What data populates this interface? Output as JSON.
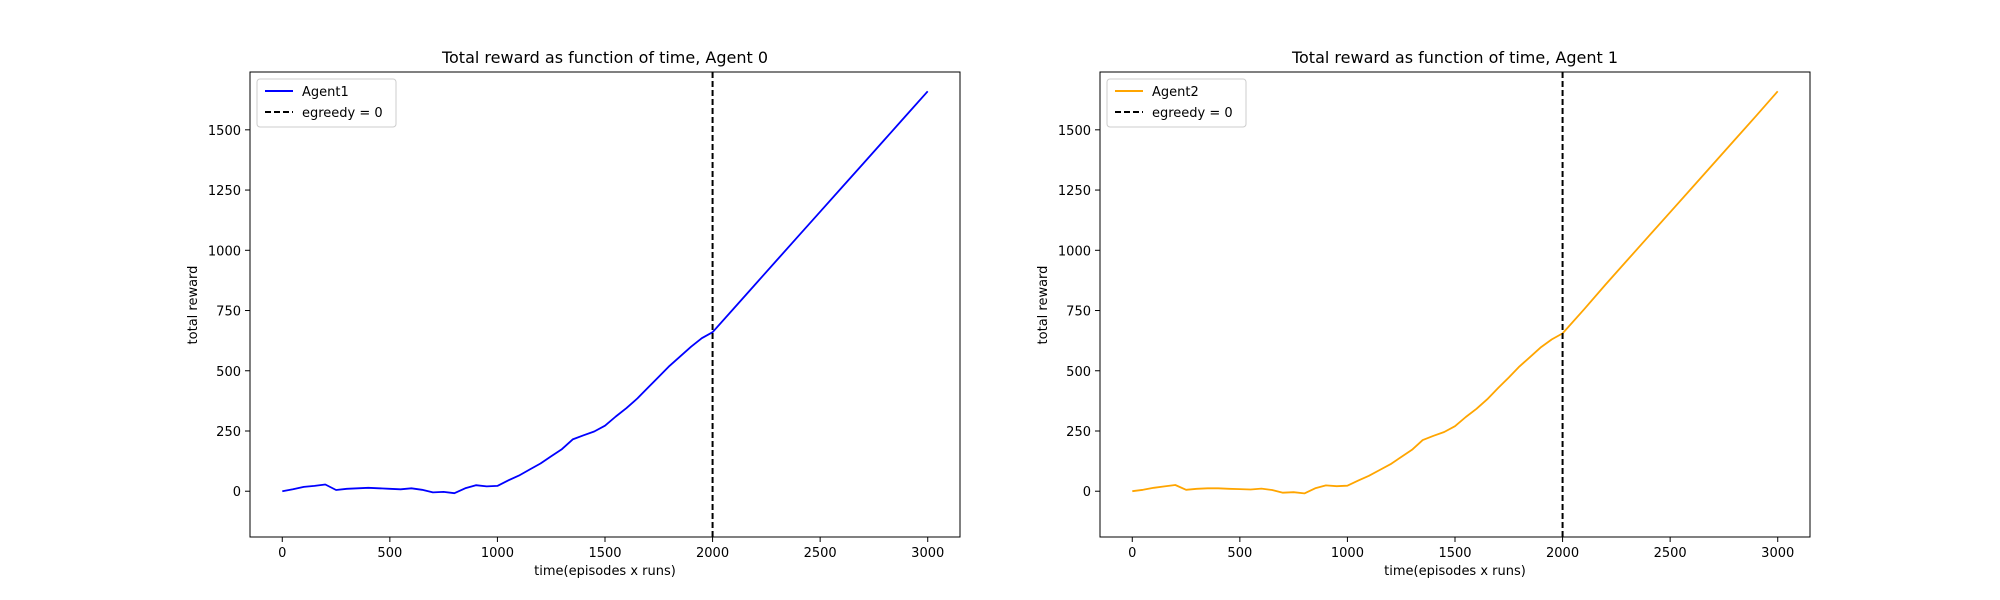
{
  "chart_data": [
    {
      "type": "line",
      "title": "Total reward as function of time, Agent 0",
      "xlabel": "time(episodes x runs)",
      "ylabel": "total reward",
      "xlim": [
        -150,
        3150
      ],
      "ylim": [
        -190,
        1740
      ],
      "xticks": [
        0,
        500,
        1000,
        1500,
        2000,
        2500,
        3000
      ],
      "yticks": [
        0,
        250,
        500,
        750,
        1000,
        1250,
        1500
      ],
      "grid": false,
      "legend_position": "top-left",
      "series": [
        {
          "name": "Agent1",
          "color": "#0000ff",
          "style": "solid",
          "x": [
            0,
            50,
            100,
            150,
            200,
            250,
            300,
            350,
            400,
            450,
            500,
            550,
            600,
            650,
            700,
            750,
            800,
            850,
            900,
            950,
            1000,
            1050,
            1100,
            1150,
            1200,
            1250,
            1300,
            1350,
            1400,
            1450,
            1500,
            1550,
            1600,
            1650,
            1700,
            1750,
            1800,
            1850,
            1900,
            1950,
            2000,
            2100,
            2200,
            2300,
            2400,
            2500,
            2600,
            2700,
            2800,
            2900,
            3000
          ],
          "y": [
            0,
            8,
            18,
            22,
            28,
            5,
            10,
            12,
            14,
            12,
            10,
            8,
            12,
            6,
            -5,
            -3,
            -8,
            12,
            25,
            20,
            22,
            45,
            65,
            90,
            115,
            145,
            175,
            215,
            232,
            248,
            272,
            310,
            345,
            385,
            430,
            475,
            520,
            560,
            600,
            635,
            660,
            760,
            860,
            960,
            1060,
            1160,
            1260,
            1360,
            1460,
            1560,
            1660
          ]
        }
      ],
      "vline": {
        "x": 2000,
        "name": "egreedy = 0",
        "color": "#000000",
        "style": "dashed"
      }
    },
    {
      "type": "line",
      "title": "Total reward as function of time, Agent 1",
      "xlabel": "time(episodes x runs)",
      "ylabel": "total reward",
      "xlim": [
        -150,
        3150
      ],
      "ylim": [
        -190,
        1740
      ],
      "xticks": [
        0,
        500,
        1000,
        1500,
        2000,
        2500,
        3000
      ],
      "yticks": [
        0,
        250,
        500,
        750,
        1000,
        1250,
        1500
      ],
      "grid": false,
      "legend_position": "top-left",
      "series": [
        {
          "name": "Agent2",
          "color": "#ffa500",
          "style": "solid",
          "x": [
            0,
            50,
            100,
            150,
            200,
            250,
            300,
            350,
            400,
            450,
            500,
            550,
            600,
            650,
            700,
            750,
            800,
            850,
            900,
            950,
            1000,
            1050,
            1100,
            1150,
            1200,
            1250,
            1300,
            1350,
            1400,
            1450,
            1500,
            1550,
            1600,
            1650,
            1700,
            1750,
            1800,
            1850,
            1900,
            1950,
            2000,
            2100,
            2200,
            2300,
            2400,
            2500,
            2600,
            2700,
            2800,
            2900,
            3000
          ],
          "y": [
            0,
            6,
            14,
            20,
            26,
            6,
            10,
            12,
            12,
            10,
            9,
            7,
            11,
            5,
            -6,
            -4,
            -9,
            12,
            24,
            21,
            23,
            44,
            64,
            88,
            112,
            142,
            172,
            212,
            230,
            246,
            270,
            308,
            342,
            382,
            428,
            472,
            518,
            558,
            598,
            630,
            655,
            755,
            858,
            958,
            1058,
            1158,
            1258,
            1358,
            1458,
            1558,
            1660
          ]
        }
      ],
      "vline": {
        "x": 2000,
        "name": "egreedy = 0",
        "color": "#000000",
        "style": "dashed"
      }
    }
  ]
}
